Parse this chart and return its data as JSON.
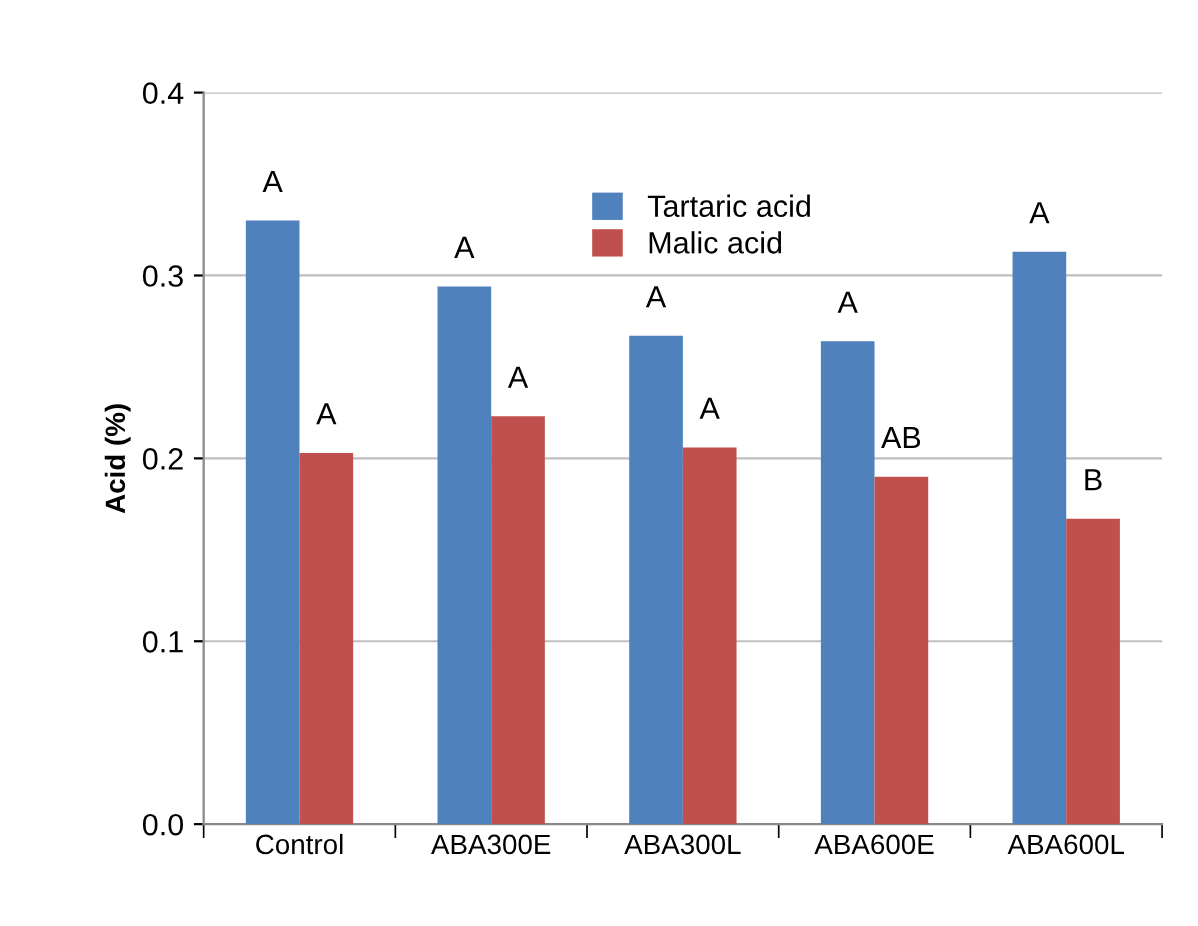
{
  "chart_data": {
    "type": "bar",
    "ylabel": "Acid (%)",
    "categories": [
      "Control",
      "ABA300E",
      "ABA300L",
      "ABA600E",
      "ABA600L"
    ],
    "series": [
      {
        "name": "Tartaric acid",
        "color": "#4f81bd",
        "values": [
          0.33,
          0.294,
          0.267,
          0.264,
          0.313
        ],
        "value_labels": [
          "A",
          "A",
          "A",
          "A",
          "A"
        ]
      },
      {
        "name": "Malic acid",
        "color": "#c0504d",
        "values": [
          0.203,
          0.223,
          0.206,
          0.19,
          0.167
        ],
        "value_labels": [
          "A",
          "A",
          "A",
          "AB",
          "B"
        ]
      }
    ],
    "ylim": [
      0,
      0.4
    ],
    "yticks": [
      {
        "value": 0,
        "label": "0.0"
      },
      0.1,
      0.2,
      0.3,
      0.4
    ],
    "grid": "y",
    "legend": "top"
  }
}
